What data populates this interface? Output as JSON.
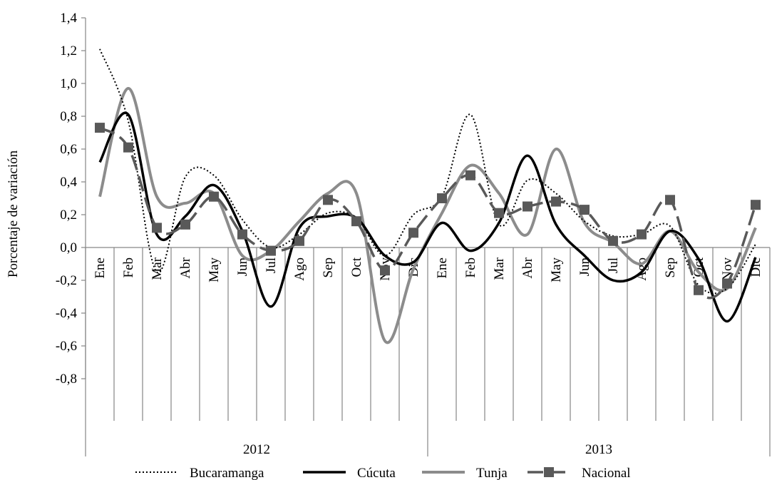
{
  "chart_data": {
    "type": "line",
    "ylabel": "Porcentaje de variación",
    "ylim": [
      -0.8,
      1.4
    ],
    "ytick_step": 0.2,
    "decimal_separator": ",",
    "grid": false,
    "legend_position": "bottom",
    "categories": [
      "Ene",
      "Feb",
      "Mar",
      "Abr",
      "May",
      "Jun",
      "Jul",
      "Ago",
      "Sep",
      "Oct",
      "Nov",
      "Dic",
      "Ene",
      "Feb",
      "Mar",
      "Abr",
      "May",
      "Jun",
      "Jul",
      "Ago",
      "Sep",
      "Oct",
      "Nov",
      "Dic"
    ],
    "groups": [
      {
        "label": "2012",
        "start": 0,
        "end": 11
      },
      {
        "label": "2013",
        "start": 12,
        "end": 23
      }
    ],
    "series": [
      {
        "name": "Bucaramanga",
        "color": "#000000",
        "style": "dotted",
        "marker": "none",
        "values": [
          1.21,
          0.77,
          -0.15,
          0.43,
          0.44,
          0.17,
          0.0,
          0.08,
          0.21,
          0.18,
          -0.05,
          0.2,
          0.31,
          0.81,
          0.14,
          0.41,
          0.33,
          0.16,
          0.07,
          0.08,
          0.13,
          -0.23,
          -0.25,
          0.02
        ]
      },
      {
        "name": "Cúcuta",
        "color": "#000000",
        "style": "solid",
        "marker": "none",
        "values": [
          0.52,
          0.81,
          0.08,
          0.19,
          0.38,
          0.1,
          -0.36,
          0.12,
          0.19,
          0.18,
          -0.05,
          -0.09,
          0.15,
          -0.02,
          0.15,
          0.56,
          0.14,
          -0.05,
          -0.2,
          -0.15,
          0.1,
          -0.07,
          -0.45,
          -0.06
        ]
      },
      {
        "name": "Tunja",
        "color": "#8c8c8c",
        "style": "solid",
        "marker": "none",
        "values": [
          0.31,
          0.97,
          0.31,
          0.27,
          0.33,
          -0.05,
          -0.02,
          0.16,
          0.33,
          0.33,
          -0.57,
          -0.13,
          0.21,
          0.5,
          0.33,
          0.08,
          0.6,
          0.15,
          0.03,
          -0.1,
          0.1,
          -0.15,
          -0.25,
          0.12
        ]
      },
      {
        "name": "Nacional",
        "color": "#595959",
        "style": "dashed",
        "marker": "square",
        "values": [
          0.73,
          0.61,
          0.12,
          0.14,
          0.31,
          0.08,
          -0.02,
          0.04,
          0.29,
          0.16,
          -0.14,
          0.09,
          0.3,
          0.44,
          0.21,
          0.25,
          0.28,
          0.23,
          0.04,
          0.08,
          0.29,
          -0.26,
          -0.22,
          0.26
        ]
      }
    ]
  }
}
